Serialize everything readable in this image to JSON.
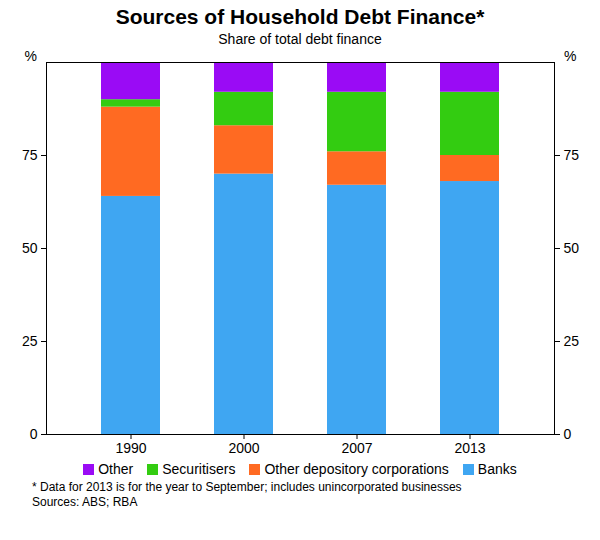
{
  "chart_data": {
    "type": "bar",
    "title": "Sources of Household Debt Finance*",
    "subtitle": "Share of total debt finance",
    "ylabel": "%",
    "categories": [
      "1990",
      "2000",
      "2007",
      "2013"
    ],
    "series": [
      {
        "name": "Other",
        "color": "#9a0bf5",
        "values": [
          10,
          8,
          8,
          8
        ]
      },
      {
        "name": "Securitisers",
        "color": "#33cc11",
        "values": [
          2,
          9,
          16,
          17
        ]
      },
      {
        "name": "Other depository corporations",
        "color": "#ff6a22",
        "values": [
          24,
          13,
          9,
          7
        ]
      },
      {
        "name": "Banks",
        "color": "#3fa6f2",
        "values": [
          64,
          70,
          67,
          68
        ]
      }
    ],
    "ylim": [
      0,
      100
    ],
    "yticks": [
      0,
      25,
      50,
      75
    ],
    "stacked": true,
    "grid": false,
    "legend": "bottom",
    "footnote": "*   Data for 2013 is for the year to September; includes unincorporated businesses",
    "sources": "Sources: ABS; RBA"
  }
}
